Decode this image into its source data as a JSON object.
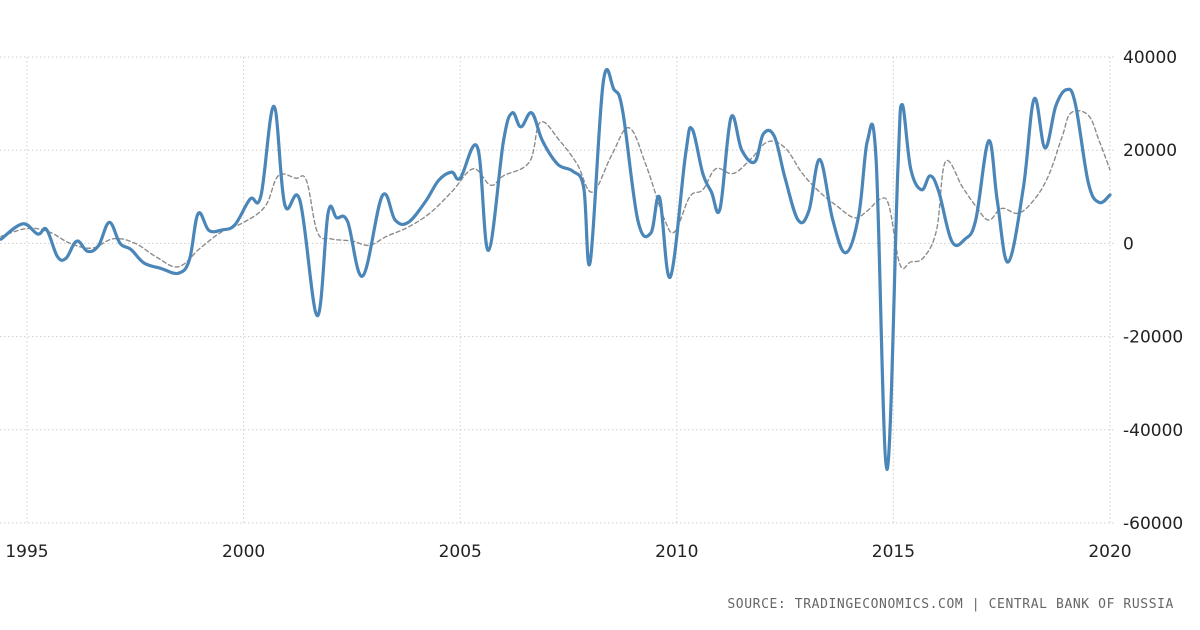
{
  "source_text": "SOURCE: TRADINGECONOMICS.COM | CENTRAL BANK OF RUSSIA",
  "colors": {
    "main_line": "#4a86b8",
    "avg_line": "#8c8c8c",
    "grid": "#cfcfcf",
    "text": "#222222"
  },
  "chart_data": {
    "type": "line",
    "title": "",
    "xlabel": "",
    "ylabel": "",
    "xlim": [
      1994.4,
      2020.0
    ],
    "ylim": [
      -60000,
      40000
    ],
    "x_ticks": [
      1995,
      2000,
      2005,
      2010,
      2015,
      2020
    ],
    "x_tick_labels": [
      "1995",
      "2000",
      "2005",
      "2010",
      "2015",
      "2020"
    ],
    "y_ticks": [
      40000,
      20000,
      0,
      -20000,
      -40000,
      -60000
    ],
    "y_tick_labels": [
      "40000",
      "20000",
      "0",
      "-20000",
      "-40000",
      "-60000"
    ],
    "y_axis_position": "right",
    "grid": true,
    "legend": "none",
    "series": [
      {
        "style": "solid",
        "color": "#4a86b8",
        "points": [
          [
            1994.4,
            900
          ],
          [
            1994.9,
            4200
          ],
          [
            1995.25,
            2000
          ],
          [
            1995.45,
            3000
          ],
          [
            1995.7,
            -2800
          ],
          [
            1995.9,
            -3200
          ],
          [
            1996.15,
            500
          ],
          [
            1996.4,
            -1700
          ],
          [
            1996.65,
            -500
          ],
          [
            1996.9,
            4500
          ],
          [
            1997.15,
            0
          ],
          [
            1997.4,
            -1300
          ],
          [
            1997.7,
            -4200
          ],
          [
            1998.1,
            -5400
          ],
          [
            1998.5,
            -6400
          ],
          [
            1998.75,
            -3500
          ],
          [
            1998.95,
            6400
          ],
          [
            1999.2,
            2800
          ],
          [
            1999.5,
            2900
          ],
          [
            1999.8,
            4000
          ],
          [
            2000.15,
            9500
          ],
          [
            2000.4,
            10200
          ],
          [
            2000.7,
            29400
          ],
          [
            2000.95,
            8300
          ],
          [
            2001.3,
            9200
          ],
          [
            2001.7,
            -15500
          ],
          [
            2001.95,
            6500
          ],
          [
            2002.15,
            5500
          ],
          [
            2002.4,
            4700
          ],
          [
            2002.75,
            -7000
          ],
          [
            2003.2,
            10200
          ],
          [
            2003.5,
            5000
          ],
          [
            2003.8,
            4500
          ],
          [
            2004.2,
            9000
          ],
          [
            2004.5,
            13500
          ],
          [
            2004.8,
            15300
          ],
          [
            2005.0,
            14000
          ],
          [
            2005.4,
            20600
          ],
          [
            2005.65,
            -1500
          ],
          [
            2006.0,
            22000
          ],
          [
            2006.2,
            28000
          ],
          [
            2006.4,
            25000
          ],
          [
            2006.65,
            28000
          ],
          [
            2006.9,
            22000
          ],
          [
            2007.25,
            17000
          ],
          [
            2007.6,
            15500
          ],
          [
            2007.85,
            12000
          ],
          [
            2008.0,
            -4000
          ],
          [
            2008.3,
            34500
          ],
          [
            2008.55,
            33000
          ],
          [
            2008.75,
            28500
          ],
          [
            2009.1,
            5000
          ],
          [
            2009.4,
            2200
          ],
          [
            2009.6,
            9900
          ],
          [
            2009.85,
            -7200
          ],
          [
            2010.2,
            19000
          ],
          [
            2010.35,
            24600
          ],
          [
            2010.6,
            15000
          ],
          [
            2010.8,
            11000
          ],
          [
            2011.0,
            7500
          ],
          [
            2011.25,
            27000
          ],
          [
            2011.5,
            20000
          ],
          [
            2011.8,
            17500
          ],
          [
            2012.0,
            23500
          ],
          [
            2012.25,
            23000
          ],
          [
            2012.5,
            14000
          ],
          [
            2012.8,
            5000
          ],
          [
            2013.05,
            7000
          ],
          [
            2013.3,
            18000
          ],
          [
            2013.6,
            5000
          ],
          [
            2013.9,
            -2000
          ],
          [
            2014.2,
            6000
          ],
          [
            2014.4,
            22000
          ],
          [
            2014.6,
            18000
          ],
          [
            2014.85,
            -48500
          ],
          [
            2015.1,
            15000
          ],
          [
            2015.2,
            29800
          ],
          [
            2015.4,
            16000
          ],
          [
            2015.65,
            11500
          ],
          [
            2015.85,
            14500
          ],
          [
            2016.05,
            11000
          ],
          [
            2016.35,
            400
          ],
          [
            2016.65,
            900
          ],
          [
            2016.9,
            5000
          ],
          [
            2017.2,
            22000
          ],
          [
            2017.4,
            9000
          ],
          [
            2017.65,
            -4000
          ],
          [
            2018.0,
            12000
          ],
          [
            2018.25,
            31000
          ],
          [
            2018.5,
            20500
          ],
          [
            2018.75,
            29500
          ],
          [
            2019.0,
            33000
          ],
          [
            2019.2,
            30000
          ],
          [
            2019.5,
            13000
          ],
          [
            2019.75,
            8800
          ],
          [
            2020.0,
            10400
          ]
        ]
      },
      {
        "style": "dashed",
        "color": "#8c8c8c",
        "points": [
          [
            1994.4,
            1500
          ],
          [
            1995.0,
            3200
          ],
          [
            1995.5,
            2500
          ],
          [
            1996.0,
            0
          ],
          [
            1996.5,
            -1000
          ],
          [
            1997.0,
            1000
          ],
          [
            1997.5,
            0
          ],
          [
            1998.0,
            -3000
          ],
          [
            1998.5,
            -5000
          ],
          [
            1999.0,
            -1000
          ],
          [
            1999.5,
            2500
          ],
          [
            2000.0,
            4500
          ],
          [
            2000.5,
            8000
          ],
          [
            2000.8,
            14500
          ],
          [
            2001.2,
            14000
          ],
          [
            2001.45,
            13500
          ],
          [
            2001.7,
            2500
          ],
          [
            2002.0,
            1000
          ],
          [
            2002.5,
            500
          ],
          [
            2002.9,
            -400
          ],
          [
            2003.3,
            1500
          ],
          [
            2003.8,
            3500
          ],
          [
            2004.3,
            6500
          ],
          [
            2004.8,
            11000
          ],
          [
            2005.3,
            16000
          ],
          [
            2005.7,
            12500
          ],
          [
            2006.0,
            14500
          ],
          [
            2006.6,
            17500
          ],
          [
            2006.85,
            26000
          ],
          [
            2007.3,
            22000
          ],
          [
            2007.7,
            17000
          ],
          [
            2008.05,
            11000
          ],
          [
            2008.5,
            19000
          ],
          [
            2008.9,
            24800
          ],
          [
            2009.3,
            16500
          ],
          [
            2009.7,
            5500
          ],
          [
            2009.95,
            2500
          ],
          [
            2010.3,
            10000
          ],
          [
            2010.6,
            11500
          ],
          [
            2010.9,
            16000
          ],
          [
            2011.3,
            15000
          ],
          [
            2011.7,
            18000
          ],
          [
            2012.1,
            21800
          ],
          [
            2012.5,
            20500
          ],
          [
            2012.9,
            15000
          ],
          [
            2013.3,
            11000
          ],
          [
            2013.7,
            8000
          ],
          [
            2014.1,
            5500
          ],
          [
            2014.4,
            7000
          ],
          [
            2014.7,
            9500
          ],
          [
            2014.9,
            8000
          ],
          [
            2015.15,
            -4500
          ],
          [
            2015.4,
            -4000
          ],
          [
            2015.7,
            -3000
          ],
          [
            2016.0,
            3000
          ],
          [
            2016.2,
            17500
          ],
          [
            2016.6,
            12000
          ],
          [
            2016.9,
            8000
          ],
          [
            2017.2,
            5000
          ],
          [
            2017.5,
            7500
          ],
          [
            2017.9,
            6500
          ],
          [
            2018.3,
            10000
          ],
          [
            2018.6,
            15000
          ],
          [
            2018.9,
            23000
          ],
          [
            2019.1,
            28000
          ],
          [
            2019.5,
            27500
          ],
          [
            2019.75,
            22000
          ],
          [
            2020.0,
            15800
          ]
        ]
      }
    ]
  }
}
